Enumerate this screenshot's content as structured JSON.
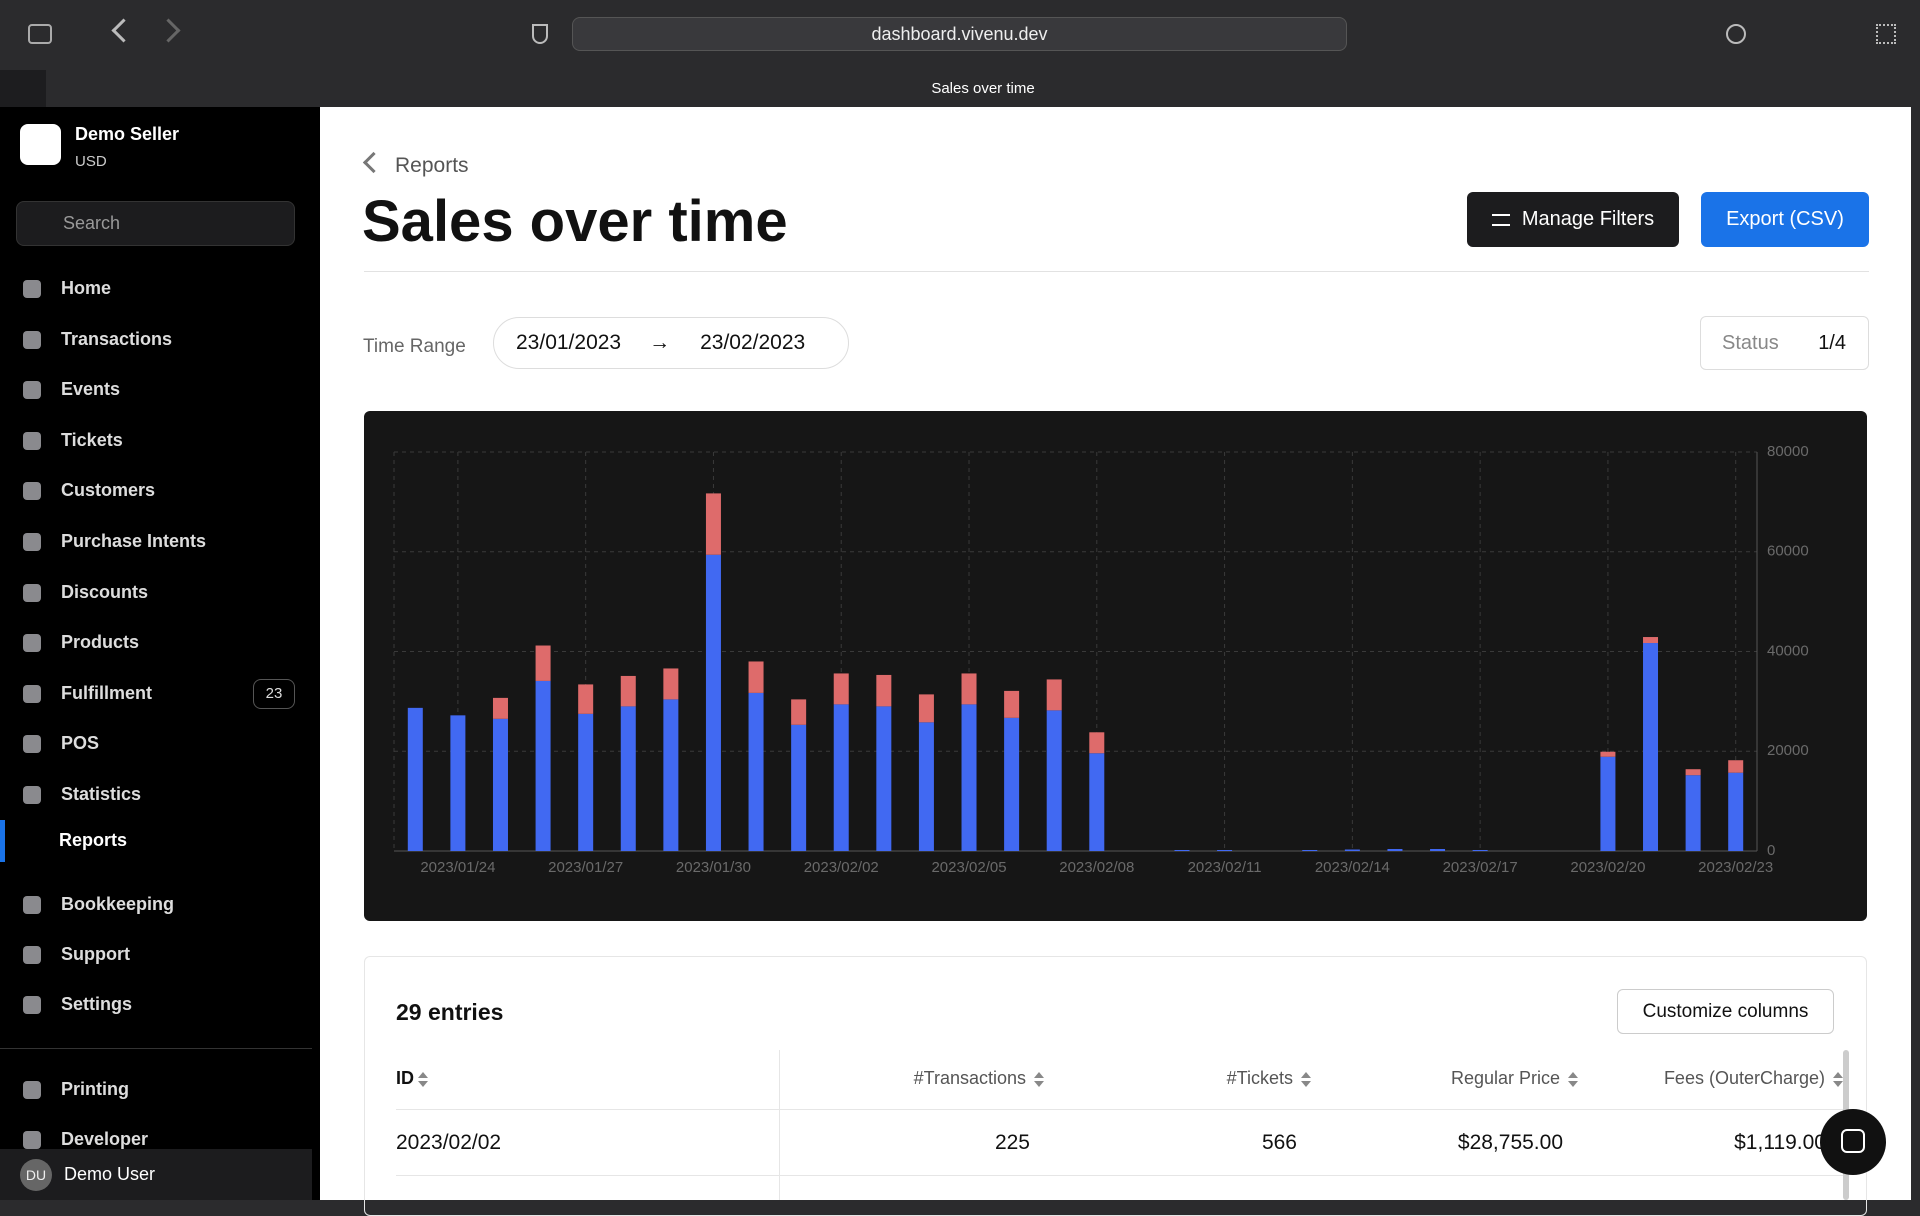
{
  "browser": {
    "url": "dashboard.vivenu.dev",
    "tab_title": "Sales over time"
  },
  "sidebar": {
    "account": {
      "name": "Demo Seller",
      "currency": "USD"
    },
    "search_placeholder": "Search",
    "nav": [
      {
        "label": "Home"
      },
      {
        "label": "Transactions"
      },
      {
        "label": "Events"
      },
      {
        "label": "Tickets"
      },
      {
        "label": "Customers"
      },
      {
        "label": "Purchase Intents"
      },
      {
        "label": "Discounts"
      },
      {
        "label": "Products"
      },
      {
        "label": "Fulfillment",
        "badge": 23
      },
      {
        "label": "POS"
      },
      {
        "label": "Statistics"
      },
      {
        "label": "Reports",
        "active": true
      },
      {
        "label": "Bookkeeping"
      },
      {
        "label": "Support"
      },
      {
        "label": "Settings"
      }
    ],
    "nav_secondary": [
      {
        "label": "Printing"
      },
      {
        "label": "Developer"
      }
    ],
    "user": {
      "initials": "DU",
      "name": "Demo User"
    }
  },
  "header": {
    "breadcrumb": "Reports",
    "title": "Sales over time",
    "buttons": [
      "Manage Filters",
      "Export (CSV)"
    ]
  },
  "filters": {
    "time_range_label": "Time Range",
    "start": "23/01/2023",
    "end": "23/02/2023",
    "status_label": "Status",
    "status_value": "1/4"
  },
  "chart_data": {
    "type": "stacked_bar",
    "categories": [
      null,
      "2023/01/24",
      null,
      null,
      "2023/01/27",
      null,
      null,
      "2023/01/30",
      null,
      null,
      "2023/02/02",
      null,
      null,
      "2023/02/05",
      null,
      null,
      "2023/02/08",
      null,
      null,
      "2023/02/11",
      null,
      null,
      "2023/02/14",
      null,
      null,
      "2023/02/17",
      null,
      null,
      "2023/02/20",
      null,
      null,
      "2023/02/23"
    ],
    "series": [
      {
        "color": "#4169f2",
        "values": [
          28700,
          27200,
          26500,
          34100,
          27500,
          29000,
          30400,
          59400,
          31700,
          25300,
          29400,
          29000,
          25800,
          29400,
          26700,
          28200,
          19600,
          0,
          200,
          200,
          0,
          200,
          300,
          400,
          400,
          200,
          0,
          0,
          18900,
          41700,
          15200,
          15700
        ]
      },
      {
        "color": "#de6b6b",
        "values": [
          0,
          0,
          4200,
          7100,
          5900,
          6100,
          6200,
          12300,
          6300,
          5100,
          6200,
          6300,
          5600,
          6200,
          5400,
          6200,
          4200,
          0,
          0,
          0,
          0,
          0,
          0,
          0,
          0,
          0,
          0,
          0,
          1000,
          1200,
          1200,
          2500
        ]
      }
    ],
    "ylim": [
      0,
      80000
    ],
    "yticks": [
      0,
      20000,
      40000,
      60000,
      80000
    ],
    "grid": true
  },
  "table": {
    "entries_label": "29 entries",
    "customize_button": "Customize columns",
    "columns": [
      "ID",
      "#Transactions",
      "#Tickets",
      "Regular Price",
      "Fees (OuterCharge)"
    ],
    "rows": [
      [
        "2023/02/02",
        "225",
        "566",
        "$28,755.00",
        "$1,119.00"
      ]
    ]
  }
}
